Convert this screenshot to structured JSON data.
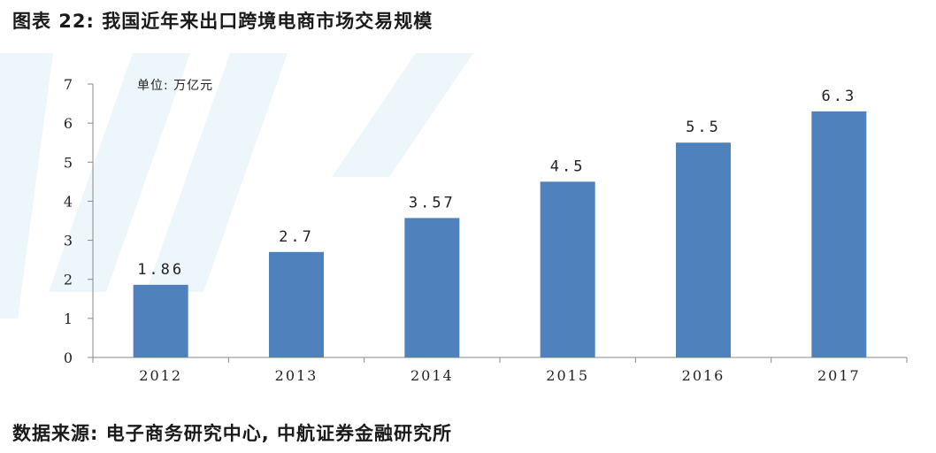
{
  "header": {
    "title": "图表 22: 我国近年来出口跨境电商市场交易规模"
  },
  "footer": {
    "source": "数据来源: 电子商务研究中心, 中航证券金融研究所"
  },
  "chart_data": {
    "type": "bar",
    "title": "",
    "xlabel": "",
    "ylabel": "",
    "unit_label": "单位: 万亿元",
    "categories": [
      "2012",
      "2013",
      "2014",
      "2015",
      "2016",
      "2017"
    ],
    "values": [
      1.86,
      2.7,
      3.57,
      4.5,
      5.5,
      6.3
    ],
    "data_labels": [
      "1.86",
      "2.7",
      "3.57",
      "4.5",
      "5.5",
      "6.3"
    ],
    "ylim": [
      0,
      7
    ],
    "yticks": [
      0,
      1,
      2,
      3,
      4,
      5,
      6,
      7
    ],
    "grid": false,
    "bar_color": "#4f81bd",
    "watermark_color": "#d6ebf7"
  }
}
